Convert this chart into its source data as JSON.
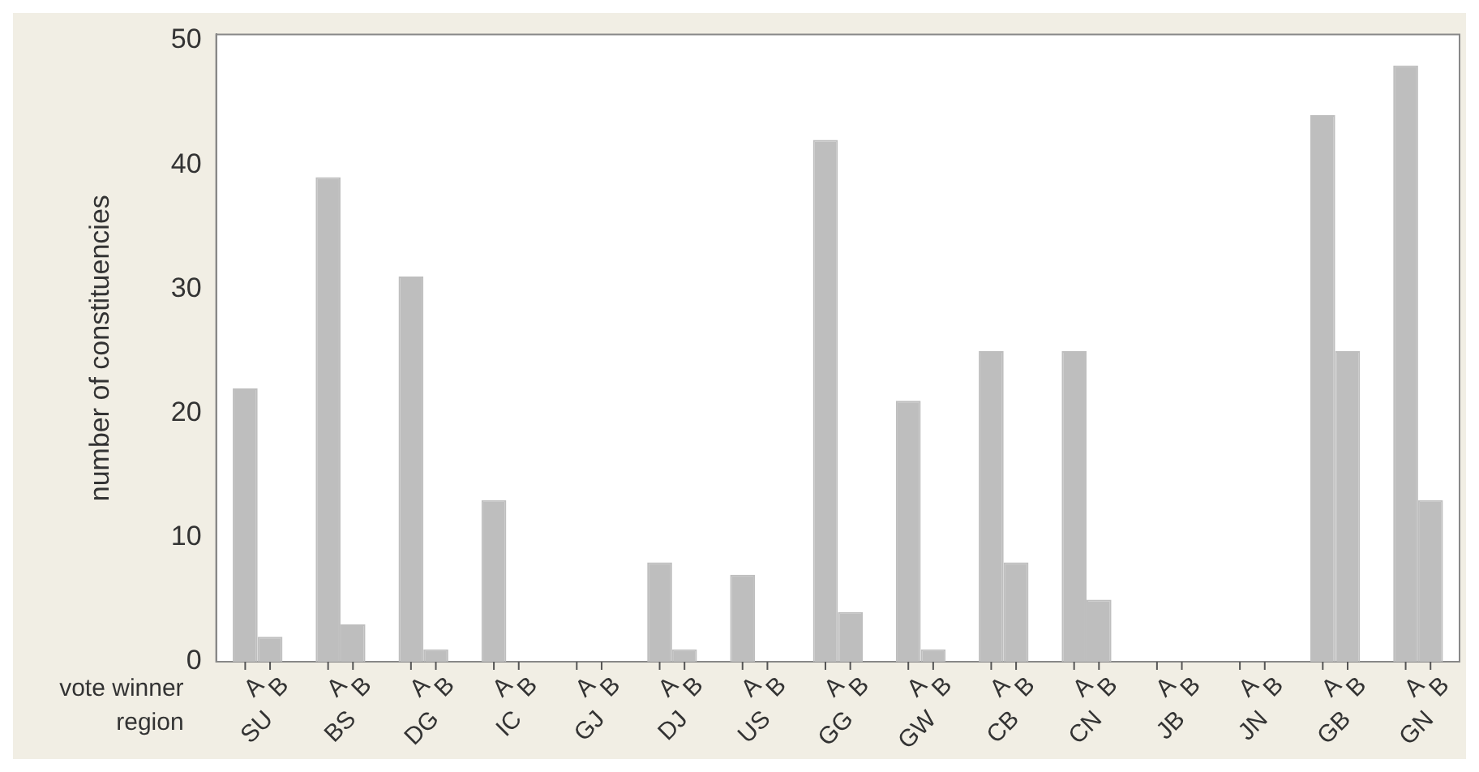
{
  "chart_data": {
    "type": "bar",
    "ylabel": "number of constituencies",
    "xlabel": "region",
    "annotations": [
      "vote winner"
    ],
    "categories": [
      "SU",
      "BS",
      "DG",
      "IC",
      "GJ",
      "DJ",
      "US",
      "GG",
      "GW",
      "CB",
      "CN",
      "JB",
      "JN",
      "GB",
      "GN"
    ],
    "series": [
      {
        "name": "A",
        "color": "#bebebe",
        "values": [
          22,
          39,
          31,
          13,
          0,
          8,
          7,
          42,
          21,
          25,
          25,
          0,
          0,
          44,
          48
        ]
      },
      {
        "name": "B",
        "color": "#bebebe",
        "values": [
          2,
          3,
          1,
          0,
          0,
          1,
          0,
          4,
          1,
          8,
          5,
          0,
          0,
          25,
          13
        ]
      }
    ],
    "ylim": [
      0,
      50.5
    ],
    "yticks": [
      0,
      10,
      20,
      30,
      40,
      50
    ],
    "grid": false,
    "legend": false
  }
}
